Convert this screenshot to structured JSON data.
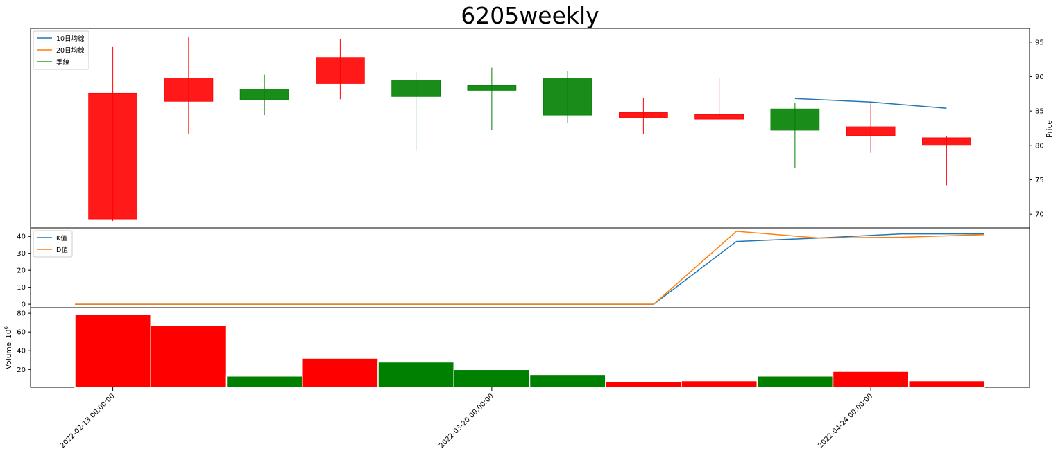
{
  "chart_data": {
    "type": "candlestick",
    "title": "6205weekly",
    "x_tick_labels": [
      "2022-02-13 00:00:00",
      "2022-03-20 00:00:00",
      "2022-04-24 00:00:00"
    ],
    "x_tick_indices": [
      0,
      5,
      10
    ],
    "colors": {
      "up": "#ff0000",
      "down": "#008000",
      "ma10": "#1f77b4",
      "ma20": "#ff7f0e",
      "season": "#2ca02c",
      "k": "#1f77b4",
      "d": "#ff7f0e"
    },
    "price": {
      "ylabel": "Price",
      "ylim": [
        68,
        97
      ],
      "yticks": [
        70,
        75,
        80,
        85,
        90,
        95
      ],
      "legend": [
        "10日均線",
        "20日均線",
        "季線"
      ],
      "legend_position": "upper-left",
      "candles": [
        {
          "open": 69.3,
          "close": 87.6,
          "high": 94.3,
          "low": 69.0
        },
        {
          "open": 86.4,
          "close": 89.8,
          "high": 95.8,
          "low": 81.7
        },
        {
          "open": 88.2,
          "close": 86.6,
          "high": 90.3,
          "low": 84.4
        },
        {
          "open": 89.0,
          "close": 92.8,
          "high": 95.4,
          "low": 86.7
        },
        {
          "open": 89.5,
          "close": 87.1,
          "high": 90.6,
          "low": 79.2
        },
        {
          "open": 88.7,
          "close": 88.0,
          "high": 91.3,
          "low": 82.3
        },
        {
          "open": 89.7,
          "close": 84.4,
          "high": 90.8,
          "low": 83.3
        },
        {
          "open": 84.0,
          "close": 84.8,
          "high": 86.9,
          "low": 81.7
        },
        {
          "open": 83.8,
          "close": 84.5,
          "high": 89.8,
          "low": 83.8
        },
        {
          "open": 85.3,
          "close": 82.2,
          "high": 86.2,
          "low": 76.7
        },
        {
          "open": 81.4,
          "close": 82.7,
          "high": 86.1,
          "low": 78.9
        },
        {
          "open": 80.0,
          "close": 81.1,
          "high": 81.3,
          "low": 74.2
        }
      ],
      "ma10": [
        null,
        null,
        null,
        null,
        null,
        null,
        null,
        null,
        null,
        86.8,
        86.3,
        85.4
      ]
    },
    "kd": {
      "ylim": [
        -2,
        45
      ],
      "yticks": [
        0,
        10,
        20,
        30,
        40
      ],
      "legend": [
        "K值",
        "D值"
      ],
      "legend_position": "upper-left",
      "k": [
        0,
        0,
        0,
        0,
        0,
        0,
        0,
        0,
        37,
        39,
        41.5,
        41.5
      ],
      "d": [
        0,
        0,
        0,
        0,
        0,
        0,
        0,
        0,
        43,
        39,
        39.5,
        41
      ]
    },
    "volume": {
      "ylabel": "Volume",
      "ylabel_exponent": "6",
      "ylim": [
        1,
        86
      ],
      "yticks": [
        20,
        40,
        60,
        80
      ],
      "values": [
        79,
        67,
        13,
        32,
        28,
        20,
        14,
        7,
        8,
        13,
        18,
        8
      ],
      "direction": [
        "up",
        "up",
        "down",
        "up",
        "down",
        "down",
        "down",
        "up",
        "up",
        "down",
        "up",
        "up"
      ]
    }
  }
}
